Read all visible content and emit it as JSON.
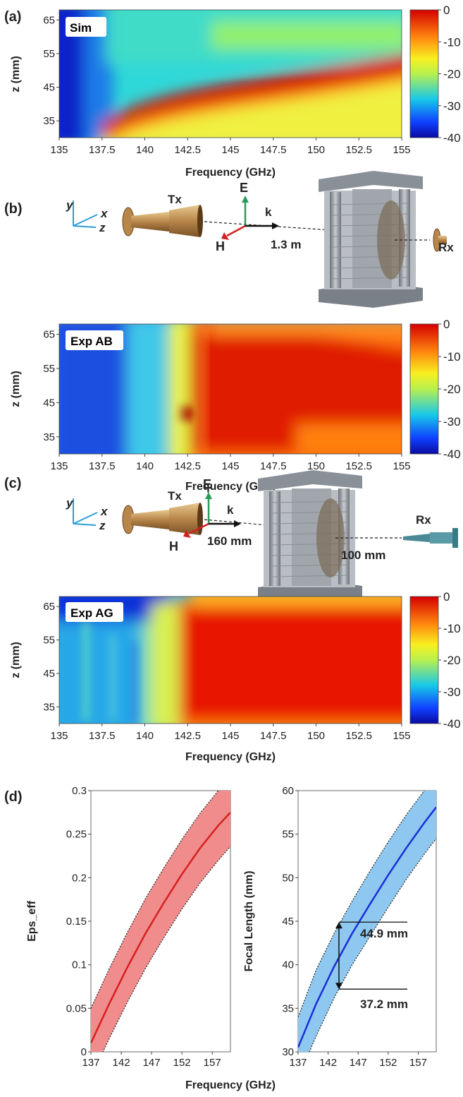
{
  "panels": {
    "a": "(a)",
    "b": "(b)",
    "c": "(c)",
    "d": "(d)"
  },
  "heatmaps": [
    {
      "id": "a",
      "tag": "Sim",
      "xlabel": "Frequency (GHz)",
      "ylabel": "z (mm)"
    },
    {
      "id": "b",
      "tag": "Exp AB",
      "xlabel": "Frequency (GHz)",
      "ylabel": "z (mm)"
    },
    {
      "id": "c",
      "tag": "Exp AG",
      "xlabel": "Frequency (GHz)",
      "ylabel": "z (mm)"
    }
  ],
  "setup_b": {
    "axis_y": "y",
    "axis_x": "x",
    "axis_z": "z",
    "tx": "Tx",
    "rx": "Rx",
    "e": "E",
    "h": "H",
    "k": "k",
    "distance": "1.3 m"
  },
  "setup_c": {
    "axis_y": "y",
    "axis_x": "x",
    "axis_z": "z",
    "tx": "Tx",
    "rx": "Rx",
    "e": "E",
    "h": "H",
    "k": "k",
    "distance_tx": "160 mm",
    "distance_rx": "100 mm"
  },
  "colors": {
    "eps": "#d62020",
    "eps_band": "#f08c8c",
    "focal": "#1a2fd6",
    "focal_band": "#8ec8f0"
  },
  "chart_data": [
    {
      "type": "heatmap",
      "title": "",
      "tag": "Sim",
      "xlabel": "Frequency (GHz)",
      "ylabel": "z (mm)",
      "xlim": [
        135,
        155
      ],
      "ylim": [
        30,
        68
      ],
      "xticks": [
        "135",
        "137.5",
        "140",
        "142.5",
        "145",
        "147.5",
        "150",
        "152.5",
        "155"
      ],
      "yticks": [
        "35",
        "45",
        "55",
        "65"
      ],
      "colorbar": {
        "min": -40,
        "max": 0,
        "ticks": [
          "0",
          "-10",
          "-20",
          "-30",
          "-40"
        ]
      },
      "ridge_z": [
        [
          137,
          32
        ],
        [
          138,
          36
        ],
        [
          140,
          39
        ],
        [
          142.5,
          41
        ],
        [
          145,
          42.5
        ],
        [
          147.5,
          44
        ],
        [
          150,
          46
        ],
        [
          152.5,
          48
        ],
        [
          155,
          49.5
        ]
      ]
    },
    {
      "type": "heatmap",
      "title": "",
      "tag": "Exp AB",
      "xlabel": "Frequency (GHz)",
      "ylabel": "z (mm)",
      "xlim": [
        135,
        155
      ],
      "ylim": [
        30,
        68
      ],
      "xticks": [
        "135",
        "137.5",
        "140",
        "142.5",
        "145",
        "147.5",
        "150",
        "152.5",
        "155"
      ],
      "yticks": [
        "35",
        "45",
        "55",
        "65"
      ],
      "colorbar": {
        "min": -40,
        "max": 0,
        "ticks": [
          "0",
          "-10",
          "-20",
          "-30",
          "-40"
        ]
      }
    },
    {
      "type": "heatmap",
      "title": "",
      "tag": "Exp AG",
      "xlabel": "Frequency (GHz)",
      "ylabel": "z (mm)",
      "xlim": [
        135,
        155
      ],
      "ylim": [
        30,
        68
      ],
      "xticks": [
        "135",
        "137.5",
        "140",
        "142.5",
        "145",
        "147.5",
        "150",
        "152.5",
        "155"
      ],
      "yticks": [
        "35",
        "45",
        "55",
        "65"
      ],
      "colorbar": {
        "min": -40,
        "max": 0,
        "ticks": [
          "0",
          "-10",
          "-20",
          "-30",
          "-40"
        ]
      }
    },
    {
      "type": "line",
      "title": "",
      "xlabel": "",
      "ylabel": "Eps_eff",
      "xlim": [
        137,
        160
      ],
      "ylim": [
        0,
        0.3
      ],
      "xticks": [
        "137",
        "142",
        "147",
        "152",
        "157"
      ],
      "yticks": [
        "0",
        "0.05",
        "0.1",
        "0.15",
        "0.2",
        "0.25",
        "0.3"
      ],
      "x": [
        137,
        140,
        143,
        146,
        149,
        152,
        155,
        158,
        160
      ],
      "y": [
        0.01,
        0.055,
        0.097,
        0.136,
        0.171,
        0.204,
        0.234,
        0.26,
        0.275
      ],
      "band": {
        "low": [
          -0.03,
          0.015,
          0.057,
          0.096,
          0.131,
          0.164,
          0.194,
          0.22,
          0.236
        ],
        "high": [
          0.05,
          0.095,
          0.137,
          0.176,
          0.211,
          0.244,
          0.274,
          0.3,
          0.315
        ]
      }
    },
    {
      "type": "line",
      "title": "",
      "xlabel": "",
      "ylabel": "Focal Length (mm)",
      "xlim": [
        137,
        160
      ],
      "ylim": [
        30,
        60
      ],
      "xticks": [
        "137",
        "142",
        "147",
        "152",
        "157"
      ],
      "yticks": [
        "30",
        "35",
        "40",
        "45",
        "50",
        "55",
        "60"
      ],
      "x": [
        137,
        140,
        143,
        146,
        149,
        152,
        155,
        158,
        160
      ],
      "y": [
        30.5,
        35.5,
        39.8,
        43.6,
        47.0,
        50.3,
        53.4,
        56.3,
        58.1
      ],
      "band": {
        "low": [
          27,
          31.8,
          36.2,
          40.0,
          43.3,
          46.6,
          49.8,
          52.7,
          54.5
        ],
        "high": [
          34,
          39.4,
          43.6,
          47.3,
          50.8,
          54.1,
          57.2,
          60,
          61.8
        ]
      },
      "annotations": [
        {
          "label": "44.9 mm",
          "value": 44.9
        },
        {
          "label": "37.2 mm",
          "value": 37.2
        }
      ],
      "marker_x": 143.8
    }
  ],
  "shared_xlabel_d": "Frequency (GHz)"
}
